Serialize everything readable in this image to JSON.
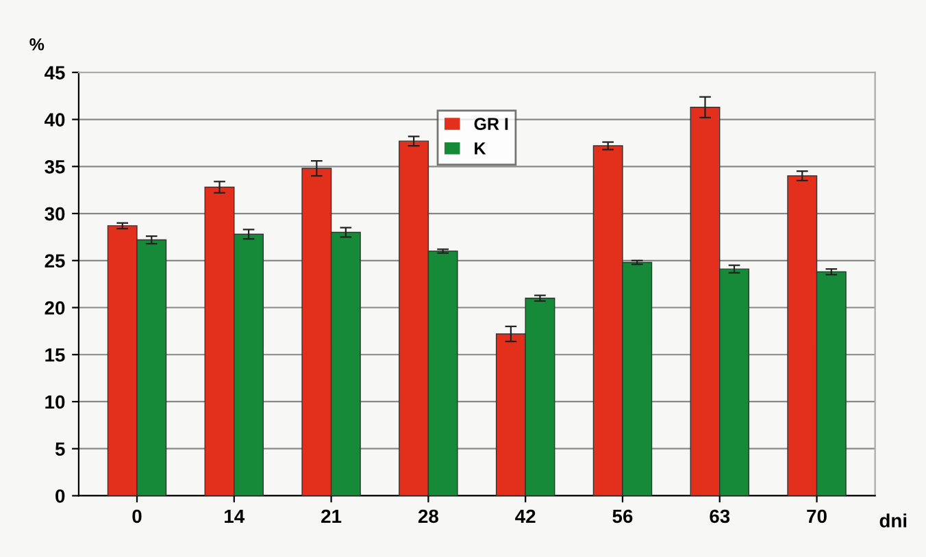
{
  "chart_data": {
    "type": "bar",
    "xlabel": "dni",
    "ylabel": "%",
    "categories": [
      "0",
      "14",
      "21",
      "28",
      "42",
      "56",
      "63",
      "70"
    ],
    "series": [
      {
        "name": "GR I",
        "color": "#e2301c",
        "values": [
          28.7,
          32.8,
          34.8,
          37.7,
          17.2,
          37.2,
          41.3,
          34.0
        ],
        "errors": [
          0.3,
          0.6,
          0.8,
          0.5,
          0.8,
          0.4,
          1.1,
          0.5
        ]
      },
      {
        "name": "K",
        "color": "#168a38",
        "values": [
          27.2,
          27.8,
          28.0,
          26.0,
          21.0,
          24.8,
          24.1,
          23.8
        ],
        "errors": [
          0.4,
          0.5,
          0.5,
          0.2,
          0.3,
          0.2,
          0.4,
          0.3
        ]
      }
    ],
    "ylim": [
      0,
      45
    ],
    "yticks": [
      0,
      5,
      10,
      15,
      20,
      25,
      30,
      35,
      40,
      45
    ],
    "grid": "y",
    "legend": "top"
  }
}
